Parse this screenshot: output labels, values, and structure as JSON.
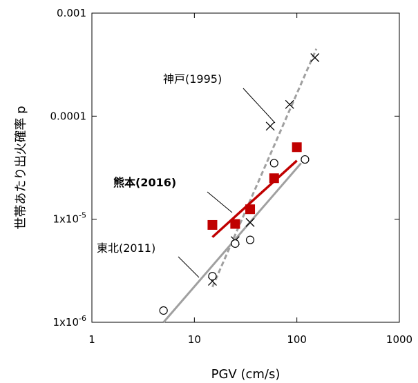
{
  "chart_data": {
    "type": "scatter",
    "xlabel": "PGV (cm/s)",
    "ylabel": "世帯あたり出火確率 p",
    "x_scale": "log",
    "y_scale": "log",
    "xlim": [
      1,
      1000
    ],
    "ylim": [
      1e-06,
      0.001
    ],
    "x_ticks": [
      {
        "value": 1,
        "label": "1"
      },
      {
        "value": 10,
        "label": "10"
      },
      {
        "value": 100,
        "label": "100"
      },
      {
        "value": 1000,
        "label": "1000"
      }
    ],
    "y_ticks": [
      {
        "value": 1e-06,
        "base": "1x10",
        "exp": "-6"
      },
      {
        "value": 1e-05,
        "base": "1x10",
        "exp": "-5"
      },
      {
        "value": 0.0001,
        "label": "0.0001"
      },
      {
        "value": 0.001,
        "label": "0.001"
      }
    ],
    "grid": false,
    "series": [
      {
        "name": "神戸(1995)",
        "marker": "x",
        "color": "#000000",
        "points": [
          [
            15,
            2.5e-06
          ],
          [
            25,
            6.2e-06
          ],
          [
            35,
            9.3e-06
          ],
          [
            55,
            8e-05
          ],
          [
            85,
            0.00013
          ],
          [
            150,
            0.00037
          ]
        ],
        "fit": {
          "style": "dashed",
          "color": "#a0a0a0",
          "x": [
            15,
            155
          ],
          "y": [
            2.2e-06,
            0.00045
          ]
        }
      },
      {
        "name": "熊本(2016)",
        "marker": "square",
        "color": "#c00000",
        "points": [
          [
            15,
            8.8e-06
          ],
          [
            25,
            9e-06
          ],
          [
            35,
            1.25e-05
          ],
          [
            60,
            2.5e-05
          ],
          [
            100,
            5e-05
          ]
        ],
        "fit": {
          "style": "solid",
          "color": "#c00000",
          "x": [
            15,
            100
          ],
          "y": [
            6.7e-06,
            3.7e-05
          ]
        }
      },
      {
        "name": "東北(2011)",
        "marker": "circle",
        "color": "#000000",
        "points": [
          [
            5,
            1.3e-06
          ],
          [
            15,
            2.8e-06
          ],
          [
            25,
            5.8e-06
          ],
          [
            35,
            6.3e-06
          ],
          [
            60,
            3.5e-05
          ],
          [
            120,
            3.8e-05
          ]
        ],
        "fit": {
          "style": "solid",
          "color": "#a0a0a0",
          "x": [
            5,
            110
          ],
          "y": [
            1e-06,
            3.5e-05
          ]
        }
      }
    ],
    "annotations": [
      {
        "text": "神戸(1995)",
        "series": "神戸(1995)"
      },
      {
        "text": "熊本(2016)",
        "series": "熊本(2016)",
        "bold": true
      },
      {
        "text": "東北(2011)",
        "series": "東北(2011)"
      }
    ]
  }
}
